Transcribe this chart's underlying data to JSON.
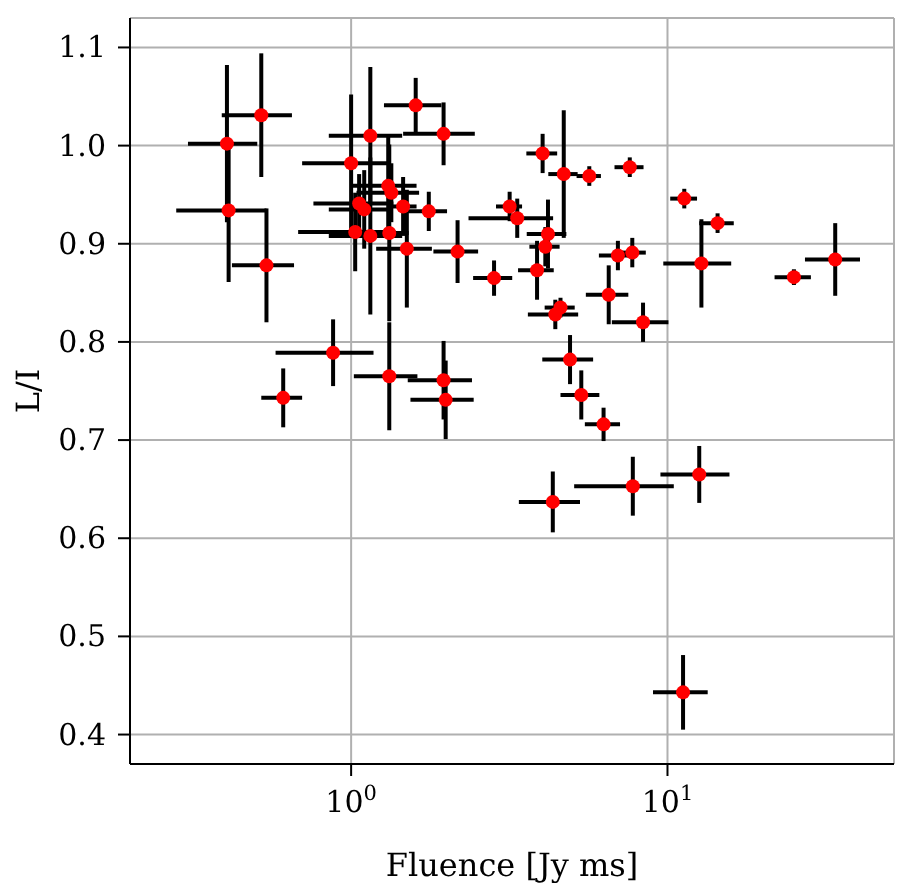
{
  "chart_data": {
    "type": "scatter",
    "xlabel": "Fluence [Jy ms]",
    "ylabel": "L/I",
    "log": "x",
    "grid": true,
    "marker": "circle",
    "color": "#ff0000",
    "xlim": [
      0.2,
      52
    ],
    "ylim": [
      0.37,
      1.13
    ],
    "xticks": [
      {
        "value": 1,
        "label": "10$^{0}$"
      },
      {
        "value": 10,
        "label": "10$^{1}$"
      }
    ],
    "yticks": [
      0.4,
      0.5,
      0.6,
      0.7,
      0.8,
      0.9,
      {
        "value": 1,
        "label": "1.0"
      },
      1.1
    ],
    "x": [
      0.52,
      0.405,
      0.41,
      0.54,
      0.61,
      0.877,
      1.0,
      1.15,
      1.6,
      1.96,
      1.31,
      1.34,
      1.06,
      1.1,
      1.46,
      1.76,
      1.03,
      1.15,
      1.32,
      1.5,
      2.17,
      2.83,
      1.32,
      1.96,
      1.99,
      3.17,
      3.35,
      4.03,
      4.7,
      5.66,
      7.6,
      11.3,
      14.4,
      4.19,
      4.11,
      3.87,
      6.97,
      7.74,
      12.8,
      25.1,
      33.9,
      6.52,
      8.37,
      4.59,
      4.42,
      4.92,
      5.34,
      6.28,
      4.34,
      7.77,
      12.6,
      11.2
    ],
    "values": [
      1.031,
      1.002,
      0.934,
      0.878,
      0.743,
      0.789,
      0.982,
      1.01,
      1.041,
      1.012,
      0.959,
      0.952,
      0.941,
      0.935,
      0.938,
      0.933,
      0.912,
      0.908,
      0.911,
      0.895,
      0.892,
      0.865,
      0.765,
      0.761,
      0.741,
      0.938,
      0.926,
      0.992,
      0.971,
      0.969,
      0.978,
      0.946,
      0.921,
      0.91,
      0.897,
      0.873,
      0.888,
      0.891,
      0.88,
      0.866,
      0.884,
      0.848,
      0.82,
      0.835,
      0.828,
      0.782,
      0.746,
      0.716,
      0.637,
      0.653,
      0.665,
      0.443
    ],
    "errors": [
      0.063,
      0.08,
      0.073,
      0.058,
      0.03,
      0.034,
      0.07,
      0.07,
      0.028,
      0.032,
      0.05,
      0.03,
      0.03,
      0.04,
      0.03,
      0.02,
      0.04,
      0.08,
      0.09,
      0.06,
      0.032,
      0.018,
      0.055,
      0.04,
      0.04,
      0.015,
      0.02,
      0.02,
      0.065,
      0.01,
      0.01,
      0.01,
      0.01,
      0.035,
      0.02,
      0.03,
      0.015,
      0.015,
      0.045,
      0.008,
      0.037,
      0.03,
      0.02,
      0.01,
      0.015,
      0.025,
      0.025,
      0.017,
      0.031,
      0.03,
      0.029,
      0.038
    ],
    "xerrors": [
      0.13,
      0.1,
      0.13,
      0.12,
      0.09,
      0.3,
      0.3,
      0.3,
      0.33,
      0.5,
      0.3,
      0.3,
      0.3,
      0.25,
      0.15,
      0.25,
      0.35,
      0.3,
      0.2,
      0.3,
      0.35,
      0.4,
      0.3,
      0.45,
      0.45,
      0.3,
      1.0,
      0.45,
      0.5,
      0.5,
      0.8,
      1.1,
      1.8,
      0.6,
      0.45,
      0.5,
      0.9,
      0.8,
      3.1,
      3.3,
      6.7,
      1.0,
      1.7,
      0.5,
      0.8,
      0.9,
      0.75,
      0.8,
      0.95,
      2.7,
      3.1,
      2.2
    ]
  }
}
